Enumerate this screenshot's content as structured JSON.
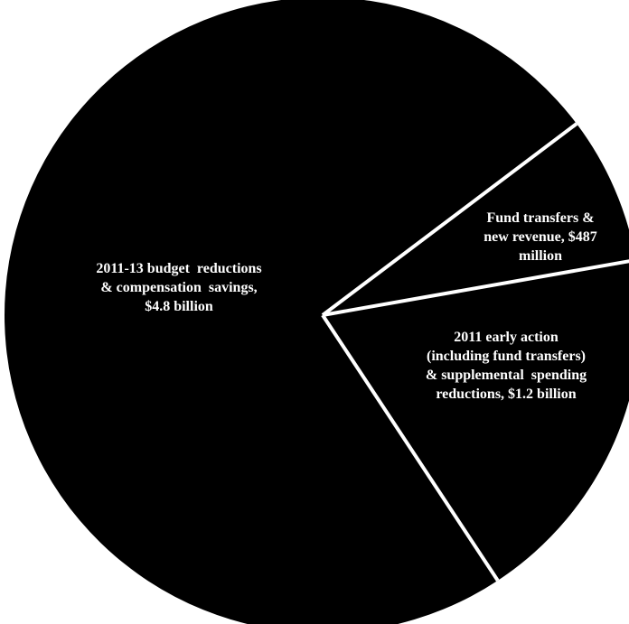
{
  "chart_data": {
    "type": "pie",
    "title": "",
    "slices": [
      {
        "label": [
          "2011-13 budget  reductions",
          "& compensation  savings,",
          "$4.8 billion"
        ],
        "value": 4.8,
        "unit": "billion"
      },
      {
        "label": [
          "Fund transfers &",
          "new revenue, $487",
          "million"
        ],
        "value": 0.487,
        "unit": "billion"
      },
      {
        "label": [
          "2011 early action",
          "(including fund transfers)",
          "& supplemental  spending",
          "reductions, $1.2 billion"
        ],
        "value": 1.2,
        "unit": "billion"
      }
    ],
    "colors": {
      "slice": "#000000",
      "separator": "#ffffff",
      "label": "#ffffff"
    },
    "legend": "none"
  }
}
